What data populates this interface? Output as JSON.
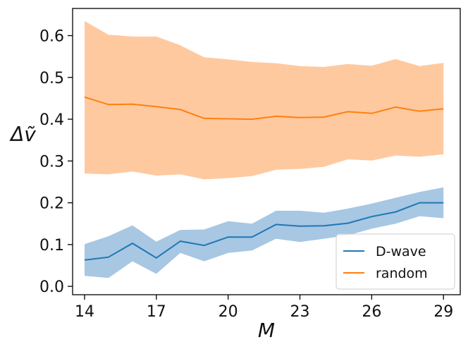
{
  "chart_data": {
    "type": "line",
    "title": "",
    "xlabel": "M",
    "ylabel": "Δṽ",
    "xlim": [
      13.5,
      29.7
    ],
    "ylim": [
      -0.02,
      0.665
    ],
    "xticks": [
      14,
      17,
      20,
      23,
      26,
      29
    ],
    "xtick_labels": [
      "14",
      "17",
      "20",
      "23",
      "26",
      "29"
    ],
    "yticks": [
      0.0,
      0.1,
      0.2,
      0.3,
      0.4,
      0.5,
      0.6
    ],
    "ytick_labels": [
      "0.0",
      "0.1",
      "0.2",
      "0.3",
      "0.4",
      "0.5",
      "0.6"
    ],
    "x": [
      14,
      15,
      16,
      17,
      18,
      19,
      20,
      21,
      22,
      23,
      24,
      25,
      26,
      27,
      28,
      29
    ],
    "legend_position": "lower-right",
    "series": [
      {
        "name": "D-wave",
        "color": "#1f77b4",
        "band_color": "#a7c7e3",
        "values": [
          0.063,
          0.07,
          0.103,
          0.068,
          0.108,
          0.098,
          0.118,
          0.118,
          0.148,
          0.144,
          0.145,
          0.151,
          0.167,
          0.178,
          0.2,
          0.2
        ],
        "lower": [
          0.025,
          0.02,
          0.06,
          0.03,
          0.08,
          0.06,
          0.08,
          0.086,
          0.114,
          0.106,
          0.114,
          0.122,
          0.138,
          0.15,
          0.168,
          0.163
        ],
        "upper": [
          0.101,
          0.12,
          0.146,
          0.107,
          0.135,
          0.136,
          0.156,
          0.15,
          0.181,
          0.181,
          0.176,
          0.186,
          0.198,
          0.212,
          0.226,
          0.237
        ]
      },
      {
        "name": "random",
        "color": "#ff7f0e",
        "band_color": "#ffc9a0",
        "values": [
          0.453,
          0.435,
          0.436,
          0.43,
          0.423,
          0.402,
          0.401,
          0.4,
          0.407,
          0.404,
          0.405,
          0.418,
          0.414,
          0.429,
          0.419,
          0.425
        ],
        "lower": [
          0.27,
          0.268,
          0.275,
          0.265,
          0.268,
          0.256,
          0.259,
          0.264,
          0.279,
          0.281,
          0.286,
          0.304,
          0.301,
          0.313,
          0.31,
          0.316
        ],
        "upper": [
          0.635,
          0.602,
          0.598,
          0.598,
          0.577,
          0.548,
          0.543,
          0.537,
          0.534,
          0.527,
          0.525,
          0.532,
          0.528,
          0.544,
          0.527,
          0.535
        ]
      }
    ]
  }
}
